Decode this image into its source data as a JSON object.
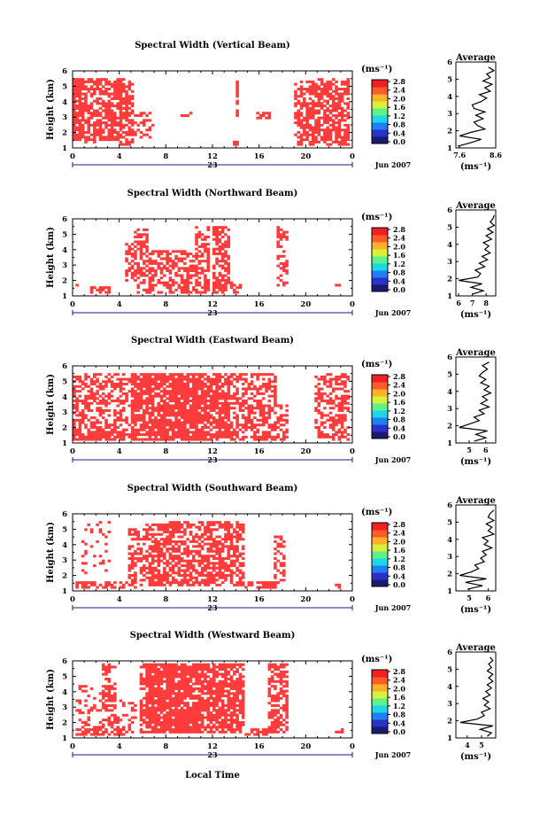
{
  "figure": {
    "x_axis_title": "Local Time",
    "date_label": "Jun 2007",
    "date_day": "23",
    "y_axis_title": "Height (km)",
    "unit_label": "(ms⁻¹)",
    "average_title": "Average",
    "average_xlabel": "(ms⁻¹)"
  },
  "chart_data": [
    {
      "type": "heatmap",
      "title": "Spectral Width (Vertical Beam)",
      "ylabel": "Height (km)",
      "xlim": [
        0,
        24
      ],
      "ylim": [
        1,
        6
      ],
      "x_ticks": [
        "0",
        "4",
        "8",
        "12",
        "16",
        "20",
        "0"
      ],
      "y_ticks": [
        "1",
        "2",
        "3",
        "4",
        "5",
        "6"
      ],
      "colorbar": {
        "ticks": [
          "0.0",
          "0.4",
          "0.8",
          "1.2",
          "1.6",
          "2.0",
          "2.4",
          "2.8"
        ],
        "range": [
          0,
          2.8
        ]
      },
      "dominant_color": "#ff3b3b",
      "coverage_density": 0.55,
      "seed": 11,
      "column_activity": [
        {
          "x": [
            0.1,
            1.0
          ],
          "y": [
            1.4,
            5.6
          ],
          "d": 0.85
        },
        {
          "x": [
            1.0,
            2.0
          ],
          "y": [
            1.3,
            5.6
          ],
          "d": 0.6
        },
        {
          "x": [
            2.0,
            4.0
          ],
          "y": [
            1.5,
            5.6
          ],
          "d": 0.75
        },
        {
          "x": [
            4.0,
            5.3
          ],
          "y": [
            1.2,
            5.6
          ],
          "d": 0.7
        },
        {
          "x": [
            5.3,
            7.0
          ],
          "y": [
            1.6,
            3.5
          ],
          "d": 0.4
        },
        {
          "x": [
            9.2,
            10.2
          ],
          "y": [
            3.1,
            3.4
          ],
          "d": 0.5
        },
        {
          "x": [
            13.9,
            14.3
          ],
          "y": [
            3.0,
            5.3
          ],
          "d": 0.8
        },
        {
          "x": [
            13.7,
            14.3
          ],
          "y": [
            1.2,
            1.5
          ],
          "d": 0.9
        },
        {
          "x": [
            15.8,
            17.0
          ],
          "y": [
            2.9,
            3.4
          ],
          "d": 0.8
        },
        {
          "x": [
            19.0,
            20.2
          ],
          "y": [
            1.2,
            5.4
          ],
          "d": 0.55
        },
        {
          "x": [
            20.2,
            23.8
          ],
          "y": [
            1.2,
            5.6
          ],
          "d": 0.65
        }
      ],
      "average": {
        "xlim": [
          7.5,
          8.6
        ],
        "xticks": [
          "7.6",
          "8.6"
        ],
        "y": [
          1.1,
          1.3,
          1.5,
          1.7,
          1.9,
          2.1,
          2.3,
          2.5,
          2.7,
          2.9,
          3.1,
          3.3,
          3.5,
          3.7,
          3.9,
          4.1,
          4.3,
          4.5,
          4.7,
          4.9,
          5.1,
          5.3,
          5.5,
          5.7
        ],
        "x": [
          7.55,
          7.9,
          8.2,
          7.6,
          7.9,
          8.3,
          8.1,
          8.0,
          8.25,
          8.05,
          8.3,
          8.0,
          7.95,
          8.2,
          8.35,
          8.15,
          8.45,
          8.3,
          8.5,
          8.25,
          8.45,
          8.35,
          8.55,
          8.4
        ]
      }
    },
    {
      "type": "heatmap",
      "title": "Spectral Width (Northward Beam)",
      "ylabel": "Height (km)",
      "xlim": [
        0,
        24
      ],
      "ylim": [
        1,
        6
      ],
      "x_ticks": [
        "0",
        "4",
        "8",
        "12",
        "16",
        "20",
        "0"
      ],
      "y_ticks": [
        "1",
        "2",
        "3",
        "4",
        "5",
        "6"
      ],
      "colorbar": {
        "ticks": [
          "0.0",
          "0.4",
          "0.8",
          "1.2",
          "1.6",
          "2.0",
          "2.4",
          "2.8"
        ],
        "range": [
          0,
          2.8
        ]
      },
      "dominant_color": "#ff3b3b",
      "coverage_density": 0.5,
      "seed": 23,
      "column_activity": [
        {
          "x": [
            0.3,
            0.6
          ],
          "y": [
            1.6,
            1.8
          ],
          "d": 0.9
        },
        {
          "x": [
            1.5,
            3.5
          ],
          "y": [
            1.2,
            1.6
          ],
          "d": 0.6
        },
        {
          "x": [
            4.5,
            5.2
          ],
          "y": [
            2.0,
            4.5
          ],
          "d": 0.45
        },
        {
          "x": [
            5.2,
            6.5
          ],
          "y": [
            1.2,
            5.4
          ],
          "d": 0.55
        },
        {
          "x": [
            6.5,
            8.5
          ],
          "y": [
            1.2,
            4.0
          ],
          "d": 0.6
        },
        {
          "x": [
            8.5,
            10.5
          ],
          "y": [
            1.2,
            4.0
          ],
          "d": 0.55
        },
        {
          "x": [
            10.5,
            11.8
          ],
          "y": [
            1.2,
            5.5
          ],
          "d": 0.6
        },
        {
          "x": [
            12.0,
            13.6
          ],
          "y": [
            1.2,
            5.5
          ],
          "d": 0.65
        },
        {
          "x": [
            13.6,
            14.5
          ],
          "y": [
            1.2,
            2.0
          ],
          "d": 0.6
        },
        {
          "x": [
            17.4,
            18.4
          ],
          "y": [
            1.4,
            5.5
          ],
          "d": 0.5
        },
        {
          "x": [
            22.6,
            22.9
          ],
          "y": [
            1.6,
            1.8
          ],
          "d": 0.9
        }
      ],
      "average": {
        "xlim": [
          5.8,
          8.7
        ],
        "xticks": [
          "6",
          "7",
          "8"
        ],
        "y": [
          1.1,
          1.3,
          1.5,
          1.7,
          1.9,
          2.1,
          2.3,
          2.5,
          2.7,
          2.9,
          3.1,
          3.3,
          3.5,
          3.7,
          3.9,
          4.1,
          4.3,
          4.5,
          4.7,
          4.9,
          5.1,
          5.3,
          5.5,
          5.7
        ],
        "x": [
          7.0,
          7.8,
          6.9,
          7.7,
          6.0,
          7.4,
          7.6,
          7.2,
          7.9,
          7.5,
          8.1,
          7.7,
          8.3,
          7.9,
          8.2,
          7.8,
          8.4,
          8.0,
          8.5,
          8.1,
          8.6,
          8.3,
          8.5,
          8.6
        ]
      }
    },
    {
      "type": "heatmap",
      "title": "Spectral Width (Eastward Beam)",
      "ylabel": "Height (km)",
      "xlim": [
        0,
        24
      ],
      "ylim": [
        1,
        6
      ],
      "x_ticks": [
        "0",
        "4",
        "8",
        "12",
        "16",
        "20",
        "0"
      ],
      "y_ticks": [
        "1",
        "2",
        "3",
        "4",
        "5",
        "6"
      ],
      "colorbar": {
        "ticks": [
          "0.0",
          "0.4",
          "0.8",
          "1.2",
          "1.6",
          "2.0",
          "2.4",
          "2.8"
        ],
        "range": [
          0,
          2.8
        ]
      },
      "dominant_color": "#ff3b3b",
      "coverage_density": 0.7,
      "seed": 37,
      "column_activity": [
        {
          "x": [
            0.1,
            4.5
          ],
          "y": [
            1.2,
            5.5
          ],
          "d": 0.55
        },
        {
          "x": [
            0.1,
            4.5
          ],
          "y": [
            1.2,
            1.8
          ],
          "d": 0.85
        },
        {
          "x": [
            4.5,
            5.0
          ],
          "y": [
            1.2,
            5.5
          ],
          "d": 0.25
        },
        {
          "x": [
            5.0,
            11.5
          ],
          "y": [
            1.2,
            5.6
          ],
          "d": 0.85
        },
        {
          "x": [
            11.5,
            13.5
          ],
          "y": [
            1.2,
            5.5
          ],
          "d": 0.7
        },
        {
          "x": [
            13.5,
            15.5
          ],
          "y": [
            1.2,
            5.5
          ],
          "d": 0.55
        },
        {
          "x": [
            15.5,
            17.5
          ],
          "y": [
            1.2,
            5.5
          ],
          "d": 0.6
        },
        {
          "x": [
            17.5,
            18.6
          ],
          "y": [
            1.2,
            3.5
          ],
          "d": 0.45
        },
        {
          "x": [
            20.8,
            22.2
          ],
          "y": [
            1.3,
            5.5
          ],
          "d": 0.45
        },
        {
          "x": [
            22.2,
            23.8
          ],
          "y": [
            1.2,
            5.5
          ],
          "d": 0.55
        }
      ],
      "average": {
        "xlim": [
          4.2,
          6.6
        ],
        "xticks": [
          "5",
          "6"
        ],
        "y": [
          1.1,
          1.3,
          1.5,
          1.7,
          1.9,
          2.1,
          2.3,
          2.5,
          2.7,
          2.9,
          3.1,
          3.3,
          3.5,
          3.7,
          3.9,
          4.1,
          4.3,
          4.5,
          4.7,
          4.9,
          5.1,
          5.3,
          5.5,
          5.7
        ],
        "x": [
          5.3,
          6.0,
          5.4,
          6.1,
          4.4,
          5.0,
          5.6,
          5.3,
          5.9,
          5.6,
          6.2,
          5.7,
          6.1,
          5.8,
          6.3,
          5.9,
          6.2,
          5.7,
          6.0,
          5.6,
          5.8,
          6.1,
          5.8,
          6.2
        ]
      }
    },
    {
      "type": "heatmap",
      "title": "Spectral Width (Southward Beam)",
      "ylabel": "Height (km)",
      "xlim": [
        0,
        24
      ],
      "ylim": [
        1,
        6
      ],
      "x_ticks": [
        "0",
        "4",
        "8",
        "12",
        "16",
        "20",
        "0"
      ],
      "y_ticks": [
        "1",
        "2",
        "3",
        "4",
        "5",
        "6"
      ],
      "colorbar": {
        "ticks": [
          "0.0",
          "0.4",
          "0.8",
          "1.2",
          "1.6",
          "2.0",
          "2.4",
          "2.8"
        ],
        "range": [
          0,
          2.8
        ]
      },
      "dominant_color": "#ff3b3b",
      "coverage_density": 0.6,
      "seed": 53,
      "column_activity": [
        {
          "x": [
            0.2,
            4.5
          ],
          "y": [
            1.2,
            1.6
          ],
          "d": 0.55
        },
        {
          "x": [
            0.8,
            3.2
          ],
          "y": [
            2.0,
            5.6
          ],
          "d": 0.12
        },
        {
          "x": [
            4.5,
            5.5
          ],
          "y": [
            1.2,
            1.6
          ],
          "d": 0.4
        },
        {
          "x": [
            4.8,
            6.3
          ],
          "y": [
            1.3,
            5.0
          ],
          "d": 0.55
        },
        {
          "x": [
            6.3,
            8.3
          ],
          "y": [
            1.3,
            5.3
          ],
          "d": 0.65
        },
        {
          "x": [
            8.3,
            10.3
          ],
          "y": [
            1.3,
            5.5
          ],
          "d": 0.65
        },
        {
          "x": [
            10.3,
            12.2
          ],
          "y": [
            1.3,
            5.5
          ],
          "d": 0.6
        },
        {
          "x": [
            12.2,
            14.8
          ],
          "y": [
            1.3,
            5.5
          ],
          "d": 0.65
        },
        {
          "x": [
            14.8,
            17.8
          ],
          "y": [
            1.2,
            1.6
          ],
          "d": 0.75
        },
        {
          "x": [
            17.3,
            18.3
          ],
          "y": [
            1.6,
            4.6
          ],
          "d": 0.45
        },
        {
          "x": [
            22.6,
            23.1
          ],
          "y": [
            1.2,
            1.6
          ],
          "d": 0.5
        }
      ],
      "average": {
        "xlim": [
          4.3,
          6.4
        ],
        "xticks": [
          "5",
          "6"
        ],
        "y": [
          1.1,
          1.3,
          1.5,
          1.7,
          1.9,
          2.1,
          2.3,
          2.5,
          2.7,
          2.9,
          3.1,
          3.3,
          3.5,
          3.7,
          3.9,
          4.1,
          4.3,
          4.5,
          4.7,
          4.9,
          5.1,
          5.3,
          5.5,
          5.7
        ],
        "x": [
          4.9,
          5.7,
          4.8,
          5.9,
          4.5,
          5.1,
          5.5,
          5.3,
          5.8,
          5.6,
          5.9,
          5.7,
          6.2,
          5.8,
          6.0,
          5.7,
          6.3,
          6.0,
          6.2,
          5.9,
          6.3,
          6.0,
          6.1,
          6.3
        ]
      }
    },
    {
      "type": "heatmap",
      "title": "Spectral Width (Westward Beam)",
      "ylabel": "Height (km)",
      "xlim": [
        0,
        24
      ],
      "ylim": [
        1,
        6
      ],
      "x_ticks": [
        "0",
        "4",
        "8",
        "12",
        "16",
        "20",
        "0"
      ],
      "y_ticks": [
        "1",
        "2",
        "3",
        "4",
        "5",
        "6"
      ],
      "colorbar": {
        "ticks": [
          "0.0",
          "0.4",
          "0.8",
          "1.2",
          "1.6",
          "2.0",
          "2.4",
          "2.8"
        ],
        "range": [
          0,
          2.8
        ]
      },
      "dominant_color": "#ff3b3b",
      "coverage_density": 0.75,
      "seed": 71,
      "column_activity": [
        {
          "x": [
            0.2,
            4.5
          ],
          "y": [
            1.2,
            1.6
          ],
          "d": 0.7
        },
        {
          "x": [
            0.3,
            2.6
          ],
          "y": [
            1.6,
            4.5
          ],
          "d": 0.25
        },
        {
          "x": [
            2.6,
            3.8
          ],
          "y": [
            1.6,
            5.8
          ],
          "d": 0.55
        },
        {
          "x": [
            3.8,
            5.5
          ],
          "y": [
            1.3,
            3.5
          ],
          "d": 0.3
        },
        {
          "x": [
            5.7,
            6.3
          ],
          "y": [
            1.3,
            5.8
          ],
          "d": 0.65
        },
        {
          "x": [
            6.3,
            11.3
          ],
          "y": [
            1.3,
            5.8
          ],
          "d": 0.88
        },
        {
          "x": [
            11.3,
            13.0
          ],
          "y": [
            1.3,
            5.8
          ],
          "d": 0.75
        },
        {
          "x": [
            13.0,
            14.8
          ],
          "y": [
            1.3,
            5.8
          ],
          "d": 0.7
        },
        {
          "x": [
            14.8,
            16.8
          ],
          "y": [
            1.2,
            1.6
          ],
          "d": 0.75
        },
        {
          "x": [
            16.8,
            18.4
          ],
          "y": [
            1.3,
            5.8
          ],
          "d": 0.7
        },
        {
          "x": [
            22.6,
            23.2
          ],
          "y": [
            1.2,
            1.7
          ],
          "d": 0.55
        }
      ],
      "average": {
        "xlim": [
          3.2,
          6.0
        ],
        "xticks": [
          "4",
          "5"
        ],
        "y": [
          1.1,
          1.3,
          1.5,
          1.7,
          1.9,
          2.1,
          2.3,
          2.5,
          2.7,
          2.9,
          3.1,
          3.3,
          3.5,
          3.7,
          3.9,
          4.1,
          4.3,
          4.5,
          4.7,
          4.9,
          5.1,
          5.3,
          5.5,
          5.7
        ],
        "x": [
          5.4,
          5.7,
          4.9,
          5.8,
          3.5,
          4.7,
          5.2,
          5.0,
          5.6,
          5.2,
          5.5,
          5.1,
          5.6,
          5.3,
          5.7,
          5.4,
          5.8,
          5.5,
          5.8,
          5.4,
          5.7,
          5.5,
          5.8,
          5.6
        ]
      }
    }
  ]
}
